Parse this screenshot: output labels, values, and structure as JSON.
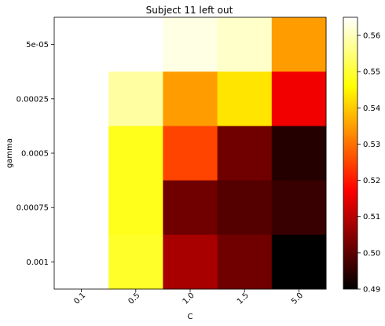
{
  "chart_data": {
    "type": "heatmap",
    "title": "Subject 11 left out",
    "xlabel": "C",
    "ylabel": "gamma",
    "x_categories": [
      "0.1",
      "0.5",
      "1.0",
      "1.5",
      "5.0"
    ],
    "y_categories": [
      "5e-05",
      "0.00025",
      "0.0005",
      "0.00075",
      "0.001"
    ],
    "values": [
      [
        0.565,
        0.565,
        0.563,
        0.561,
        0.535
      ],
      [
        0.565,
        0.558,
        0.535,
        0.543,
        0.516
      ],
      [
        0.565,
        0.548,
        0.525,
        0.502,
        0.494
      ],
      [
        0.565,
        0.548,
        0.502,
        0.499,
        0.496
      ],
      [
        0.565,
        0.549,
        0.508,
        0.502,
        0.49
      ]
    ],
    "colormap": "hot",
    "vmin": 0.49,
    "vmax": 0.565,
    "colorbar_ticks": [
      "0.49",
      "0.50",
      "0.51",
      "0.52",
      "0.53",
      "0.54",
      "0.55",
      "0.56"
    ],
    "colorbar_tick_values": [
      0.49,
      0.5,
      0.51,
      0.52,
      0.53,
      0.54,
      0.55,
      0.56
    ]
  }
}
